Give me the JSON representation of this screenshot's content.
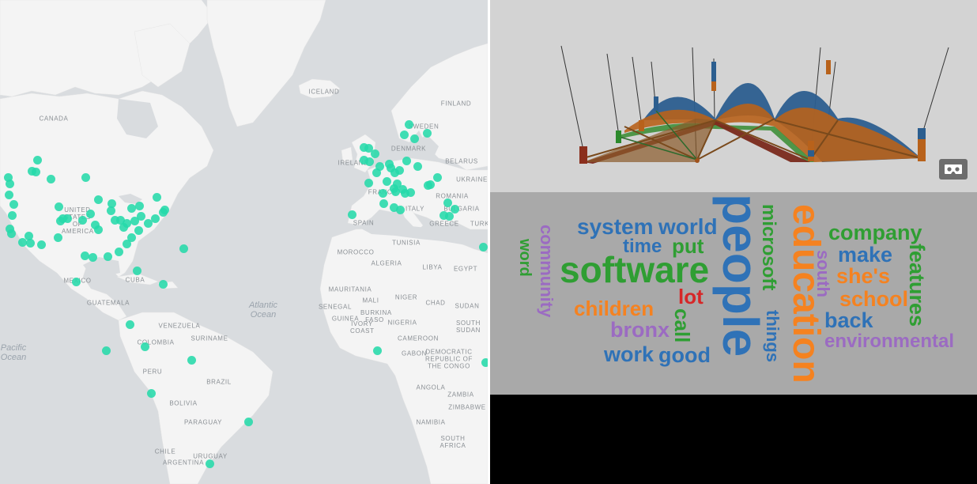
{
  "map": {
    "labels": {
      "iceland": "ICELAND",
      "canada": "CANADA",
      "finland": "FINLAND",
      "sweden": "SWEDEN",
      "denmark": "DENMARK",
      "ireland": "IRELAND",
      "belarus": "BELARUS",
      "ukraine": "UKRAINE",
      "france": "FRANCE",
      "italy": "ITALY",
      "romania": "ROMANIA",
      "bulgaria": "BULGARIA",
      "greece": "GREECE",
      "spain": "SPAIN",
      "turkey": "TURK",
      "usa": "UNITED STATES OF AMERICA",
      "mexico": "MEXICO",
      "cuba": "CUBA",
      "guatemala": "GUATEMALA",
      "venezuela": "VENEZUELA",
      "colombia": "COLOMBIA",
      "suriname": "SURINAME",
      "peru": "PERU",
      "brazil": "BRAZIL",
      "bolivia": "BOLIVIA",
      "paraguay": "PARAGUAY",
      "chile": "CHILE",
      "argentina": "ARGENTINA",
      "uruguay": "URUGUAY",
      "morocco": "MOROCCO",
      "algeria": "ALGERIA",
      "tunisia": "TUNISIA",
      "libya": "LIBYA",
      "egypt": "EGYPT",
      "mauritania": "MAURITANIA",
      "mali": "MALI",
      "niger": "NIGER",
      "chad": "CHAD",
      "sudan": "SUDAN",
      "senegal": "SENEGAL",
      "burkina": "BURKINA FASO",
      "ivory": "IVORY COAST",
      "guinea": "GUINEA",
      "nigeria": "NIGERIA",
      "southsudan": "SOUTH SUDAN",
      "cameroon": "CAMEROON",
      "gabon": "GABON",
      "drc": "DEMOCRATIC REPUBLIC OF THE CONGO",
      "angola": "ANGOLA",
      "zambia": "ZAMBIA",
      "zimbabwe": "ZIMBABWE",
      "namibia": "NAMIBIA",
      "southafrica": "SOUTH AFRICA",
      "atlantic": "Atlantic Ocean",
      "pacific": "Pacific Ocean"
    }
  },
  "word_cloud": {
    "words": [
      {
        "text": "people",
        "color": "#2f72b7"
      },
      {
        "text": "education",
        "color": "#f58220"
      },
      {
        "text": "software",
        "color": "#2f9e33"
      },
      {
        "text": "microsoft",
        "color": "#2f9e33"
      },
      {
        "text": "system",
        "color": "#2f72b7"
      },
      {
        "text": "world",
        "color": "#2f72b7"
      },
      {
        "text": "time",
        "color": "#2f72b7"
      },
      {
        "text": "put",
        "color": "#2f9e33"
      },
      {
        "text": "company",
        "color": "#2f9e33"
      },
      {
        "text": "make",
        "color": "#2f72b7"
      },
      {
        "text": "she's",
        "color": "#f58220"
      },
      {
        "text": "school",
        "color": "#f58220"
      },
      {
        "text": "features",
        "color": "#2f9e33"
      },
      {
        "text": "south",
        "color": "#9b6bc2"
      },
      {
        "text": "back",
        "color": "#2f72b7"
      },
      {
        "text": "environmental",
        "color": "#9b6bc2"
      },
      {
        "text": "things",
        "color": "#2f72b7"
      },
      {
        "text": "children",
        "color": "#f58220"
      },
      {
        "text": "lot",
        "color": "#d62728"
      },
      {
        "text": "bronx",
        "color": "#9b6bc2"
      },
      {
        "text": "call",
        "color": "#2f9e33"
      },
      {
        "text": "work",
        "color": "#2f72b7"
      },
      {
        "text": "good",
        "color": "#2f72b7"
      },
      {
        "text": "community",
        "color": "#9b6bc2"
      },
      {
        "text": "word",
        "color": "#2f9e33"
      }
    ]
  },
  "vr_button": {
    "icon": "vr-headset-icon"
  }
}
